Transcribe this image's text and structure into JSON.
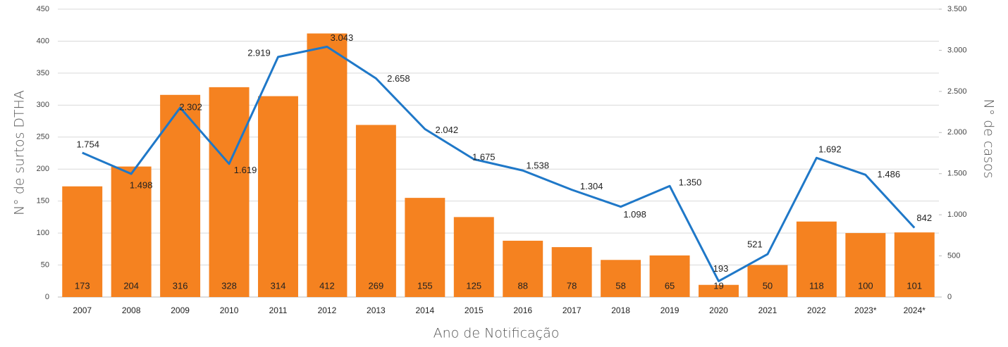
{
  "chart_data": {
    "type": "bar",
    "categories": [
      "2007",
      "2008",
      "2009",
      "2010",
      "2011",
      "2012",
      "2013",
      "2014",
      "2015",
      "2016",
      "2017",
      "2018",
      "2019",
      "2020",
      "2021",
      "2022",
      "2023*",
      "2024*"
    ],
    "series": [
      {
        "color": "#f58220",
        "values": [
          173,
          204,
          316,
          328,
          314,
          412,
          269,
          155,
          125,
          88,
          78,
          58,
          65,
          19,
          50,
          118,
          100,
          101
        ]
      },
      {
        "type": "line",
        "axis": "y2",
        "color": "#1f78c8",
        "values": [
          1754,
          1498,
          2302,
          1619,
          2919,
          3043,
          2658,
          2042,
          1675,
          1538,
          1304,
          1098,
          1350,
          193,
          521,
          1692,
          1486,
          842
        ],
        "value_labels": [
          "1.754",
          "1.498",
          "2.302",
          "1.619",
          "2.919",
          "3.043",
          "2.658",
          "2.042",
          "1.675",
          "1.538",
          "1.304",
          "1.098",
          "1.350",
          "193",
          "521",
          "1.692",
          "1.486",
          "842"
        ]
      }
    ],
    "ylabel": "N° de surtos DTHA",
    "y2label": "N° de casos",
    "xlabel": "Ano de Notificação",
    "ylim": [
      0,
      450
    ],
    "yticks": [
      0,
      50,
      100,
      150,
      200,
      250,
      300,
      350,
      400,
      450
    ],
    "y2lim": [
      0,
      3500
    ],
    "y2ticks": [
      0,
      500,
      {
        "value": 1000,
        "label": "1.000"
      },
      {
        "value": 1500,
        "label": "1.500"
      },
      {
        "value": 2000,
        "label": "2.000"
      },
      {
        "value": 2500,
        "label": "2.500"
      },
      {
        "value": 3000,
        "label": "3.000"
      },
      {
        "value": 3500,
        "label": "3.500"
      }
    ],
    "grid": true
  }
}
